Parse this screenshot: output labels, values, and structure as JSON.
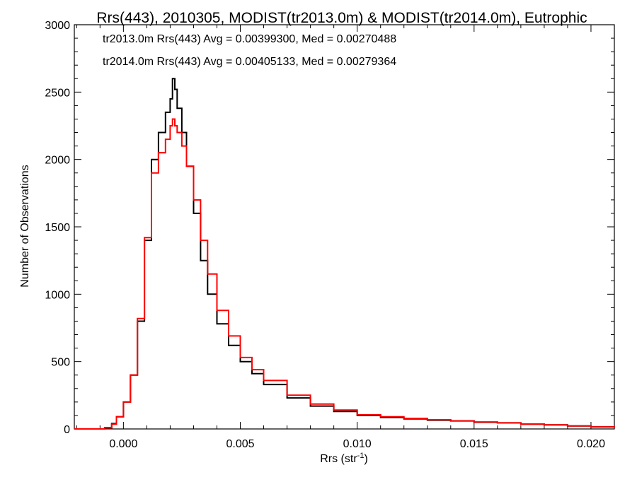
{
  "chart_data": {
    "type": "line",
    "title": "Rrs(443), 2010305, MODIST(tr2013.0m) & MODIST(tr2014.0m), Eutrophic",
    "xlabel": "Rrs (str",
    "xlabel_sup": "-1",
    "xlabel_end": ")",
    "ylabel": "Number of Observations",
    "xlim": [
      -0.0021,
      0.021
    ],
    "ylim": [
      0,
      3000
    ],
    "x_ticks": [
      0.0,
      0.005,
      0.01,
      0.015,
      0.02
    ],
    "x_tick_labels": [
      "0.000",
      "0.005",
      "0.010",
      "0.015",
      "0.020"
    ],
    "y_ticks": [
      0,
      500,
      1000,
      1500,
      2000,
      2500,
      3000
    ],
    "y_tick_labels": [
      "0",
      "500",
      "1000",
      "1500",
      "2000",
      "2500",
      "3000"
    ],
    "grid": false,
    "annotations": [
      {
        "text": "tr2013.0m Rrs(443) Avg = 0.00399300, Med = 0.00270488",
        "color": "#000000"
      },
      {
        "text": "tr2014.0m Rrs(443) Avg = 0.00405133, Med = 0.00279364",
        "color": "#ff0000"
      }
    ],
    "series": [
      {
        "color": "#000000",
        "step": true,
        "x": [
          -0.0021,
          -0.0015,
          -0.001,
          -0.0008,
          -0.0005,
          -0.0003,
          0.0,
          0.0003,
          0.0006,
          0.0009,
          0.0012,
          0.0015,
          0.0018,
          0.002,
          0.0021,
          0.0022,
          0.0023,
          0.0025,
          0.0027,
          0.003,
          0.0033,
          0.0036,
          0.004,
          0.0045,
          0.005,
          0.0055,
          0.006,
          0.007,
          0.008,
          0.009,
          0.01,
          0.011,
          0.012,
          0.013,
          0.014,
          0.015,
          0.016,
          0.017,
          0.018,
          0.019,
          0.02,
          0.021
        ],
        "values": [
          0,
          0,
          0,
          10,
          40,
          90,
          200,
          400,
          800,
          1400,
          2000,
          2200,
          2350,
          2450,
          2600,
          2520,
          2380,
          2200,
          1950,
          1600,
          1250,
          1000,
          780,
          620,
          500,
          410,
          330,
          230,
          170,
          130,
          100,
          85,
          75,
          65,
          60,
          50,
          45,
          35,
          30,
          22,
          15,
          5
        ]
      },
      {
        "color": "#ff0000",
        "step": true,
        "x": [
          -0.0021,
          -0.0015,
          -0.001,
          -0.0008,
          -0.0005,
          -0.0003,
          0.0,
          0.0003,
          0.0006,
          0.0009,
          0.0012,
          0.0015,
          0.0018,
          0.002,
          0.0021,
          0.0022,
          0.0023,
          0.0025,
          0.0027,
          0.003,
          0.0033,
          0.0036,
          0.004,
          0.0045,
          0.005,
          0.0055,
          0.006,
          0.007,
          0.008,
          0.009,
          0.01,
          0.011,
          0.012,
          0.013,
          0.014,
          0.015,
          0.016,
          0.017,
          0.018,
          0.019,
          0.02,
          0.021
        ],
        "values": [
          0,
          0,
          0,
          8,
          35,
          90,
          200,
          400,
          820,
          1420,
          1900,
          2050,
          2150,
          2250,
          2300,
          2250,
          2200,
          2100,
          1950,
          1700,
          1400,
          1150,
          880,
          690,
          530,
          440,
          360,
          250,
          185,
          140,
          105,
          90,
          78,
          68,
          60,
          52,
          45,
          36,
          30,
          22,
          15,
          5
        ]
      }
    ]
  }
}
